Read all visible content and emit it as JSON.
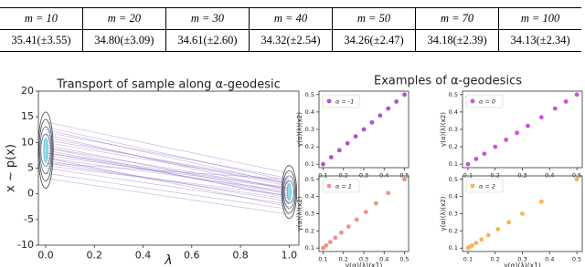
{
  "table": {
    "header": [
      "m = 10",
      "m = 20",
      "m = 30",
      "m = 40",
      "m = 50",
      "m = 70",
      "m = 100"
    ],
    "rows": [
      [
        "35.41(±3.55)",
        "34.80(±3.09)",
        "34.61(±2.60)",
        "34.32(±2.54)",
        "34.26(±2.47)",
        "34.18(±2.39)",
        "34.13(±2.34)"
      ]
    ]
  },
  "panel_title": "Examples of α-geodesics",
  "chart_data": [
    {
      "type": "line",
      "title": "Transport of sample along α-geodesic",
      "xlabel": "λ",
      "ylabel": "x ~ p(x)",
      "xlim": [
        -0.03,
        1.04
      ],
      "ylim": [
        -10,
        20
      ],
      "xticks": [
        {
          "value": 0,
          "label": "0.0"
        },
        0.2,
        0.4,
        0.6,
        0.8,
        {
          "value": 1,
          "label": "1.0"
        }
      ],
      "yticks": [
        -10,
        -5,
        0,
        5,
        10,
        15,
        20
      ],
      "color": "#8a63c4",
      "x": [
        0,
        1
      ],
      "series": [
        {
          "values": [
            8,
            0
          ]
        },
        {
          "values": [
            10,
            2
          ]
        },
        {
          "values": [
            6,
            -1
          ]
        },
        {
          "values": [
            12,
            3
          ]
        },
        {
          "values": [
            9,
            1
          ]
        },
        {
          "values": [
            5,
            -2
          ]
        },
        {
          "values": [
            7,
            0.5
          ]
        },
        {
          "values": [
            11,
            1.5
          ]
        },
        {
          "values": [
            13,
            2.5
          ]
        },
        {
          "values": [
            4,
            -3
          ]
        },
        {
          "values": [
            8.5,
            -0.5
          ]
        },
        {
          "values": [
            9.5,
            0
          ]
        },
        {
          "values": [
            7.5,
            1
          ]
        },
        {
          "values": [
            6.5,
            -1.5
          ]
        },
        {
          "values": [
            10.5,
            2.2
          ]
        },
        {
          "values": [
            14,
            4
          ]
        },
        {
          "values": [
            3,
            -4
          ]
        },
        {
          "values": [
            8,
            1.2
          ]
        },
        {
          "values": [
            9,
            -0.8
          ]
        },
        {
          "values": [
            11.5,
            0.6
          ]
        },
        {
          "values": [
            5.5,
            -0.3
          ]
        },
        {
          "values": [
            7,
            -2.5
          ]
        },
        {
          "values": [
            12.5,
            1.8
          ]
        },
        {
          "values": [
            6,
            2.8
          ]
        }
      ]
    },
    {
      "type": "scatter",
      "ylabel": "γ(α)(λ)(x2)",
      "xlim": [
        0.08,
        0.52
      ],
      "ylim": [
        0.08,
        0.52
      ],
      "xticks": [
        0.1,
        0.2,
        0.3,
        0.4,
        0.5
      ],
      "yticks": [
        0.1,
        0.2,
        0.3,
        0.4,
        0.5
      ],
      "legend": "upper left",
      "series": [
        {
          "name": "α = -1",
          "color": "#b24fd0",
          "x": [
            0.1,
            0.14,
            0.18,
            0.22,
            0.26,
            0.3,
            0.34,
            0.38,
            0.42,
            0.46,
            0.5
          ],
          "values": [
            0.1,
            0.14,
            0.18,
            0.22,
            0.26,
            0.3,
            0.34,
            0.38,
            0.42,
            0.46,
            0.5
          ]
        }
      ]
    },
    {
      "type": "scatter",
      "ylabel": "γ(α)(λ)(x2)",
      "xlim": [
        0.08,
        0.52
      ],
      "ylim": [
        0.08,
        0.52
      ],
      "xticks": [
        0.1,
        0.2,
        0.3,
        0.4,
        0.5
      ],
      "yticks": [
        0.1,
        0.2,
        0.3,
        0.4,
        0.5
      ],
      "legend": "upper left",
      "series": [
        {
          "name": "α = 0",
          "color": "#d052d8",
          "x": [
            0.1,
            0.13,
            0.16,
            0.2,
            0.24,
            0.28,
            0.32,
            0.37,
            0.42,
            0.46,
            0.5
          ],
          "values": [
            0.1,
            0.13,
            0.16,
            0.2,
            0.24,
            0.28,
            0.32,
            0.37,
            0.42,
            0.46,
            0.5
          ]
        }
      ]
    },
    {
      "type": "scatter",
      "ylabel": "γ(α)(λ)(x2)",
      "xlabel": "γ(α)(λ)(x1)",
      "xlim": [
        0.08,
        0.52
      ],
      "ylim": [
        0.08,
        0.52
      ],
      "xticks": [
        0.1,
        0.2,
        0.3,
        0.4,
        0.5
      ],
      "yticks": [
        0.1,
        0.2,
        0.3,
        0.4,
        0.5
      ],
      "legend": "upper left",
      "series": [
        {
          "name": "α = 1",
          "color": "#f4918a",
          "x": [
            0.1,
            0.115,
            0.135,
            0.16,
            0.19,
            0.225,
            0.265,
            0.31,
            0.36,
            0.42,
            0.5
          ],
          "values": [
            0.1,
            0.115,
            0.135,
            0.16,
            0.19,
            0.225,
            0.265,
            0.31,
            0.36,
            0.42,
            0.5
          ]
        }
      ]
    },
    {
      "type": "scatter",
      "ylabel": "γ(α)(λ)(x2)",
      "xlabel": "γ(α)(λ)(x1)",
      "xlim": [
        0.08,
        0.52
      ],
      "ylim": [
        0.08,
        0.52
      ],
      "xticks": [
        0.1,
        0.2,
        0.3,
        0.4,
        0.5
      ],
      "yticks": [
        0.1,
        0.2,
        0.3,
        0.4,
        0.5
      ],
      "legend": "upper left",
      "series": [
        {
          "name": "α = 2",
          "color": "#fbb25a",
          "x": [
            0.1,
            0.105,
            0.115,
            0.13,
            0.15,
            0.175,
            0.21,
            0.25,
            0.3,
            0.37,
            0.5
          ],
          "values": [
            0.1,
            0.105,
            0.115,
            0.13,
            0.15,
            0.175,
            0.21,
            0.25,
            0.3,
            0.37,
            0.5
          ]
        }
      ]
    }
  ]
}
